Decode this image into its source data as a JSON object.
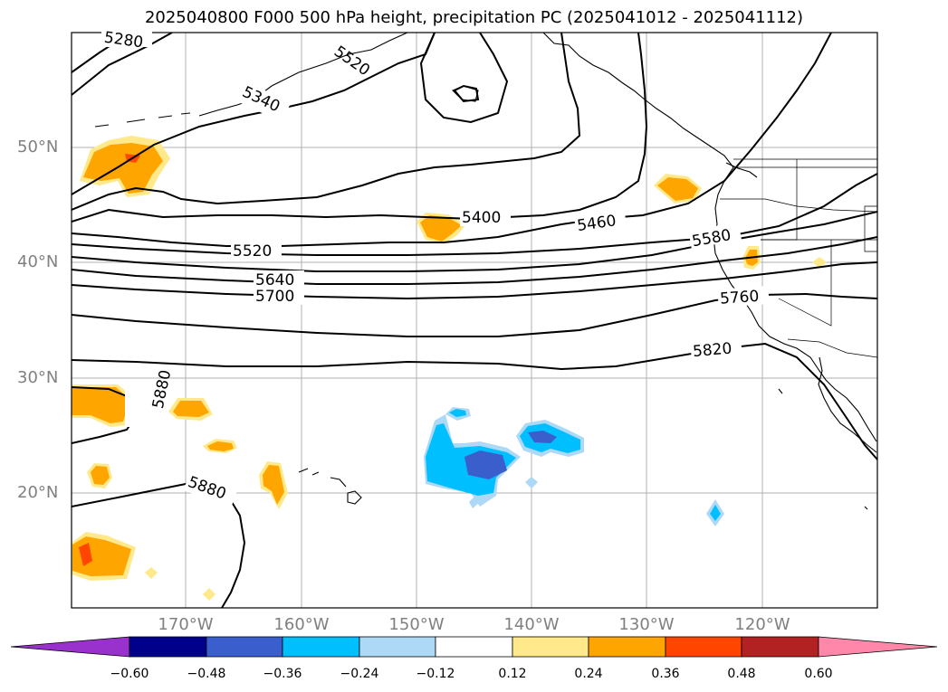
{
  "title": "2025040800 F000 500 hPa height, precipitation PC (2025041012 - 2025041112)",
  "lat_labels": [
    "50°N",
    "40°N",
    "30°N",
    "20°N"
  ],
  "lon_labels": [
    "170°W",
    "160°W",
    "150°W",
    "140°W",
    "130°W",
    "120°W"
  ],
  "contour_labels": [
    "5280",
    "5340",
    "5400",
    "5460",
    "5520",
    "5580",
    "5640",
    "5700",
    "5760",
    "5820",
    "5880",
    "5880",
    "5520"
  ],
  "colorbar": {
    "ticks": [
      "−0.60",
      "−0.48",
      "−0.36",
      "−0.24",
      "−0.12",
      "0.12",
      "0.24",
      "0.36",
      "0.48",
      "0.60"
    ],
    "colors": [
      "#9932cc",
      "#00008b",
      "#3a5fcd",
      "#00bfff",
      "#add8f6",
      "#ffffff",
      "#ffe98a",
      "#ffa500",
      "#ff4500",
      "#b22222",
      "#ff88aa"
    ]
  }
}
